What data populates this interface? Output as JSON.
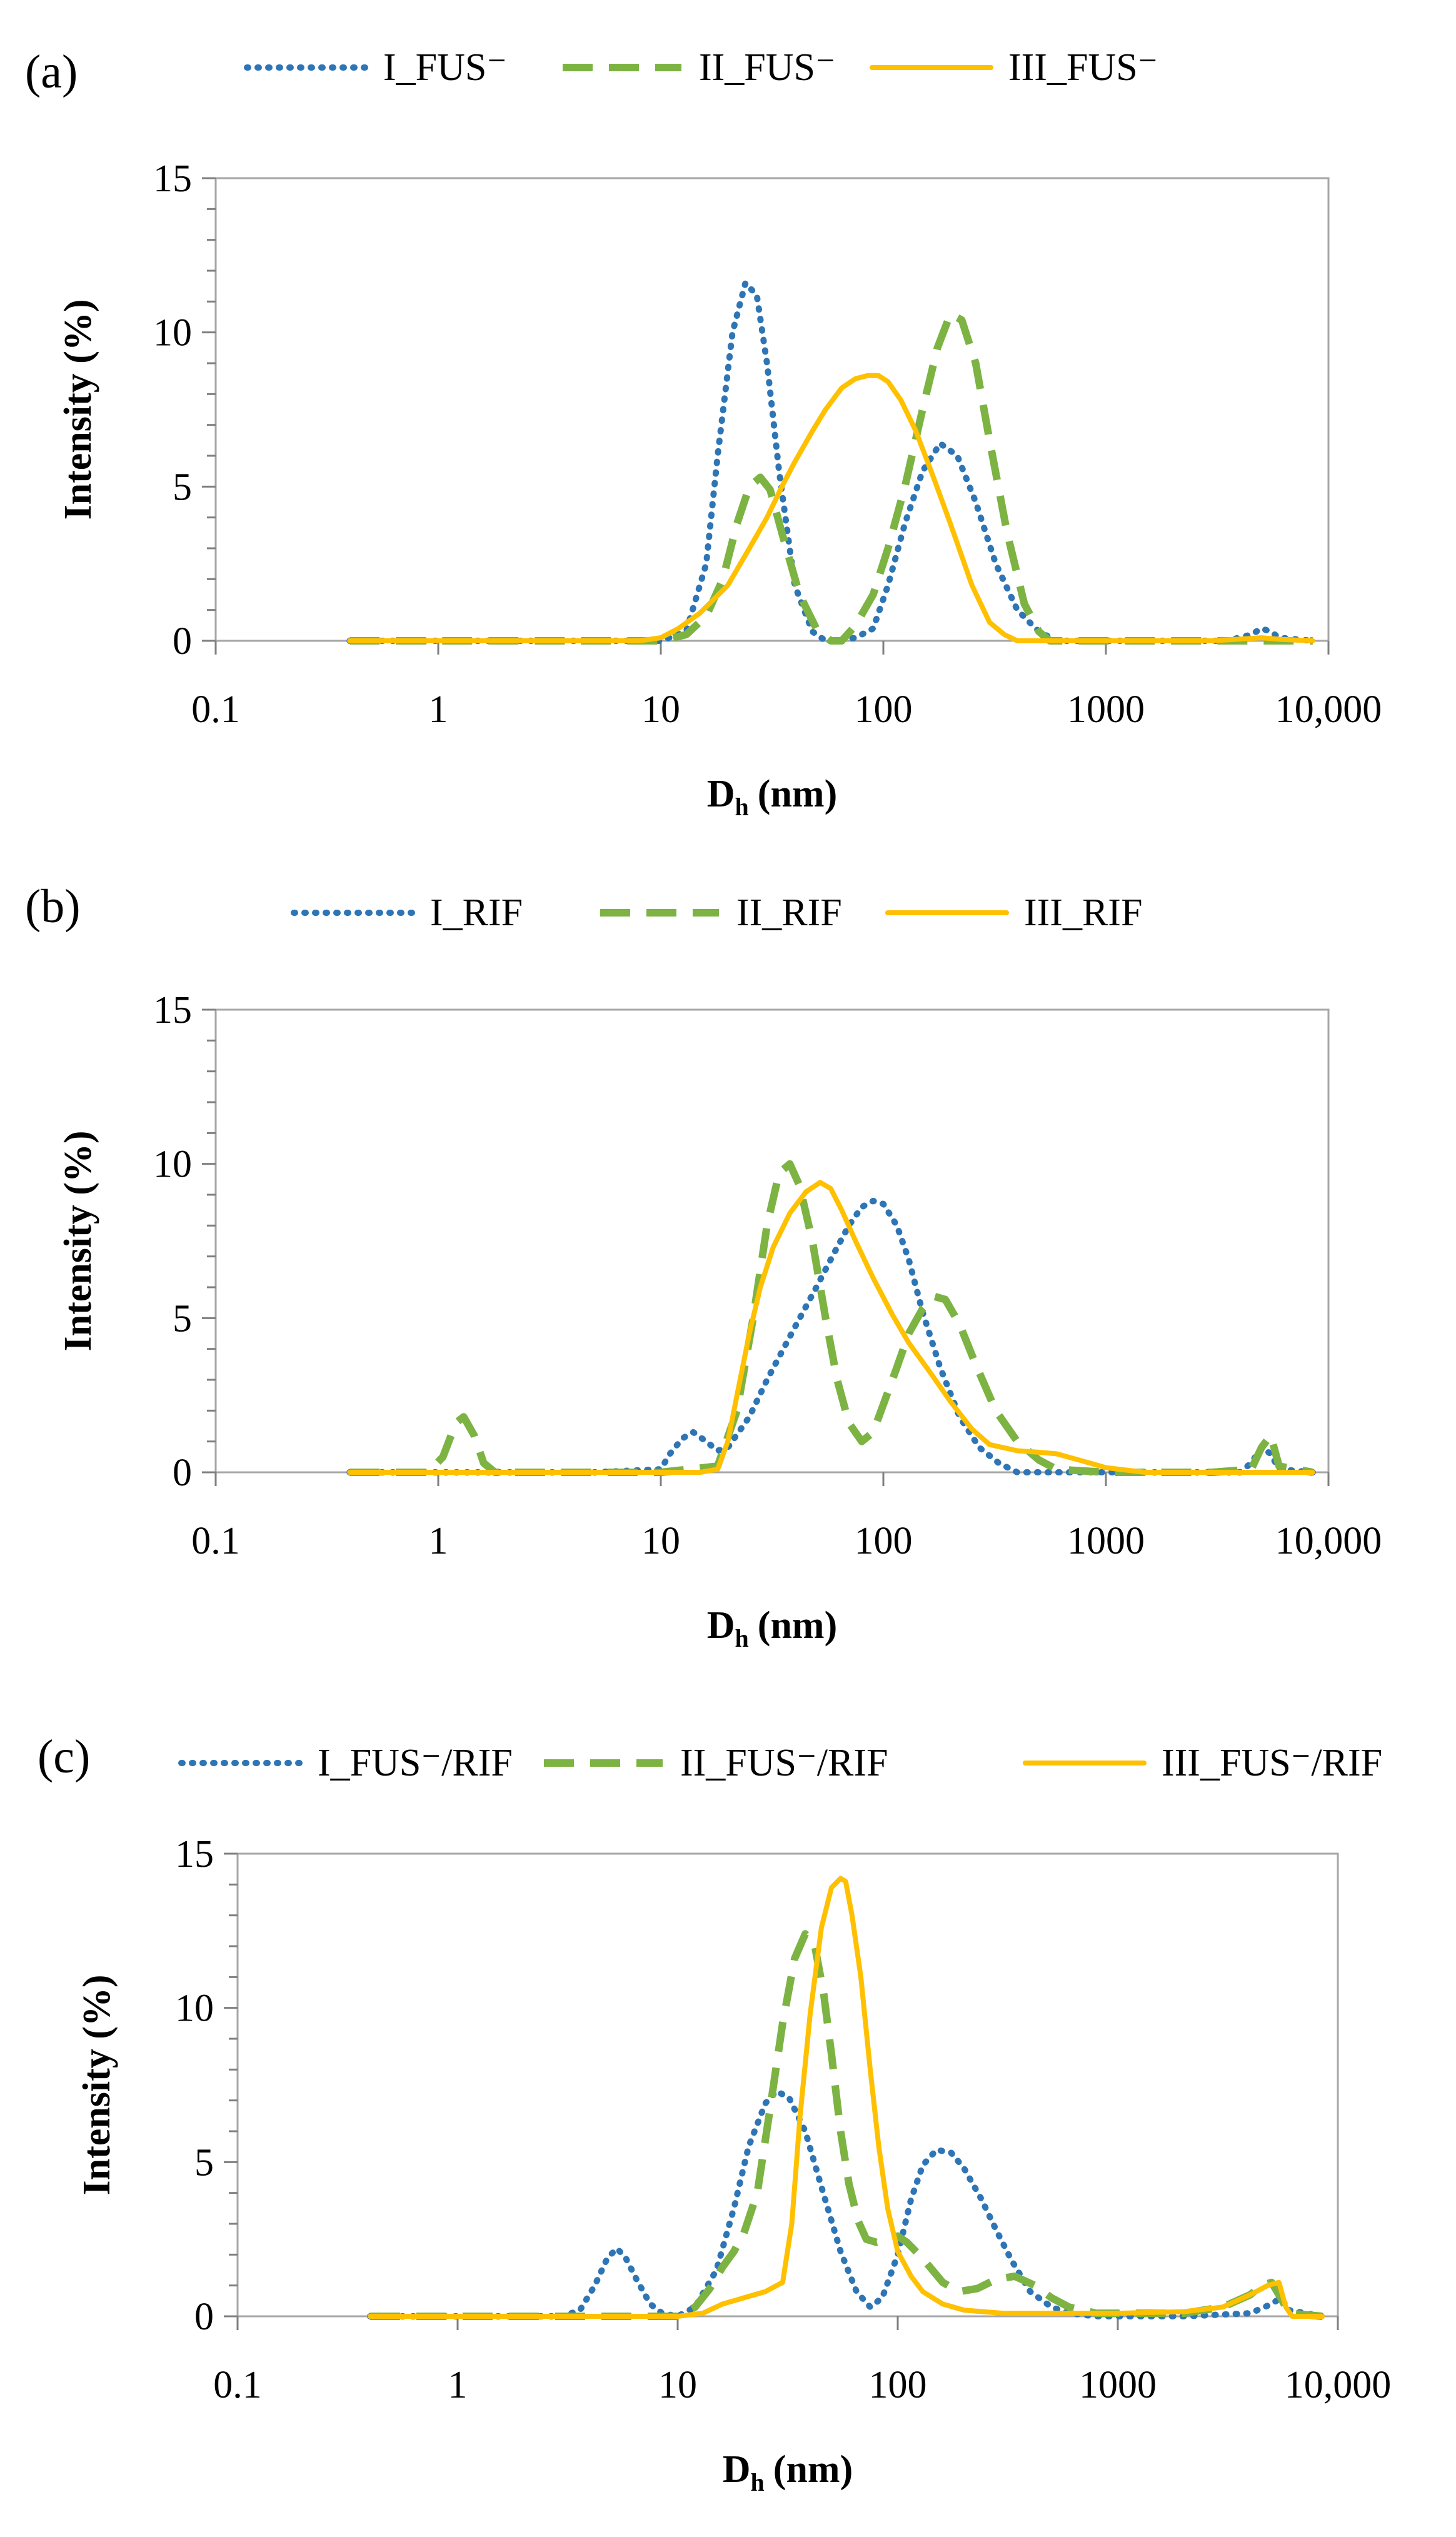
{
  "figure": {
    "series_styles": {
      "I": {
        "color": "#2E75B6",
        "dash": "dotted"
      },
      "II": {
        "color": "#7CB342",
        "dash": "dashed"
      },
      "III": {
        "color": "#FFC000",
        "dash": "solid"
      }
    },
    "x_tick_labels": [
      "0.1",
      "1",
      "10",
      "100",
      "1000",
      "10,000"
    ],
    "y_tick_labels": [
      "0",
      "5",
      "10",
      "15"
    ]
  },
  "chart_data": [
    {
      "panel": "(a)",
      "type": "line",
      "xlabel": "D",
      "xlabel_sub": "h",
      "xlabel_unit": "(nm)",
      "ylabel": "Intensity (%)",
      "xscale": "log",
      "xlim": [
        0.1,
        10000
      ],
      "ylim": [
        0,
        15
      ],
      "legend_position": "top",
      "series": [
        {
          "name": "I_FUS⁻",
          "style": "I",
          "x": [
            0.4,
            1,
            5,
            10,
            13,
            16,
            18,
            21,
            24,
            27,
            30,
            34,
            40,
            48,
            55,
            62,
            75,
            90,
            105,
            125,
            150,
            180,
            215,
            260,
            320,
            400,
            500,
            600,
            1000,
            2000,
            3500,
            4500,
            5000,
            5500,
            6000,
            8500
          ],
          "y": [
            0,
            0,
            0,
            0,
            0.3,
            2.5,
            6,
            10,
            11.6,
            11.2,
            9,
            5.5,
            1.8,
            0.3,
            0,
            0,
            0.1,
            0.4,
            1.8,
            3.8,
            5.5,
            6.4,
            6,
            4.5,
            2.5,
            1,
            0.3,
            0,
            0,
            0,
            0,
            0.2,
            0.4,
            0.3,
            0.1,
            0
          ]
        },
        {
          "name": "II_FUS⁻",
          "style": "II",
          "x": [
            0.4,
            1,
            10,
            13,
            16,
            19,
            22,
            25,
            28,
            31,
            35,
            42,
            50,
            58,
            65,
            75,
            90,
            105,
            125,
            150,
            175,
            200,
            225,
            260,
            300,
            360,
            430,
            500,
            560,
            1000,
            5000,
            8500
          ],
          "y": [
            0,
            0,
            0,
            0.2,
            0.8,
            2,
            3.8,
            5,
            5.3,
            4.9,
            3.5,
            1.5,
            0.4,
            0,
            0,
            0.5,
            1.5,
            3,
            5,
            7.5,
            9.5,
            10.6,
            10.4,
            9,
            6.5,
            3.5,
            1.2,
            0.3,
            0,
            0,
            0,
            0
          ]
        },
        {
          "name": "III_FUS⁻",
          "style": "III",
          "x": [
            0.4,
            1,
            5,
            8,
            10,
            12,
            15,
            20,
            25,
            30,
            35,
            40,
            48,
            55,
            65,
            75,
            85,
            95,
            105,
            120,
            140,
            170,
            200,
            250,
            300,
            350,
            400,
            500,
            1000,
            2000,
            3000,
            5000,
            6000,
            8500
          ],
          "y": [
            0,
            0,
            0,
            0,
            0.1,
            0.4,
            0.9,
            1.8,
            3,
            4,
            5,
            5.8,
            6.8,
            7.5,
            8.2,
            8.5,
            8.6,
            8.6,
            8.4,
            7.8,
            6.8,
            5.2,
            3.8,
            1.8,
            0.6,
            0.2,
            0,
            0,
            0,
            0,
            0,
            0.1,
            0.05,
            0
          ]
        }
      ]
    },
    {
      "panel": "(b)",
      "type": "line",
      "xlabel": "D",
      "xlabel_sub": "h",
      "xlabel_unit": "(nm)",
      "ylabel": "Intensity (%)",
      "xscale": "log",
      "xlim": [
        0.1,
        10000
      ],
      "ylim": [
        0,
        15
      ],
      "legend_position": "top",
      "series": [
        {
          "name": "I_RIF",
          "style": "I",
          "x": [
            0.4,
            1,
            5,
            10,
            11,
            12.5,
            14,
            16,
            18,
            20,
            25,
            30,
            40,
            50,
            60,
            70,
            80,
            90,
            100,
            115,
            130,
            150,
            180,
            220,
            270,
            330,
            400,
            500,
            600,
            1000,
            2000,
            4000,
            4500,
            5000,
            5500,
            6000,
            8500
          ],
          "y": [
            0,
            0,
            0,
            0.1,
            0.6,
            1.1,
            1.3,
            1.0,
            0.7,
            0.8,
            1.8,
            3,
            4.7,
            6,
            7.1,
            8,
            8.6,
            8.8,
            8.7,
            8,
            6.9,
            5.2,
            3.4,
            1.8,
            0.8,
            0.3,
            0,
            0,
            0,
            0,
            0,
            0,
            0.3,
            0.8,
            0.6,
            0.1,
            0
          ]
        },
        {
          "name": "II_RIF",
          "style": "II",
          "x": [
            0.4,
            0.9,
            1.05,
            1.2,
            1.3,
            1.45,
            1.6,
            1.8,
            10,
            18,
            22,
            26,
            30,
            34,
            38,
            42,
            48,
            55,
            62,
            70,
            80,
            90,
            100,
            115,
            130,
            150,
            170,
            190,
            220,
            260,
            320,
            400,
            500,
            600,
            1000,
            3000,
            4500,
            5000,
            5500,
            6000,
            8500
          ],
          "y": [
            0,
            0,
            0.5,
            1.6,
            1.8,
            1.2,
            0.3,
            0,
            0,
            0.2,
            2,
            5,
            8,
            9.7,
            10,
            9.3,
            7.5,
            5,
            3,
            1.6,
            1,
            1.3,
            2.2,
            3.4,
            4.5,
            5.3,
            5.7,
            5.6,
            4.8,
            3.5,
            2,
            1,
            0.4,
            0.1,
            0,
            0,
            0.1,
            0.8,
            1.2,
            0.2,
            0
          ]
        },
        {
          "name": "III_RIF",
          "style": "III",
          "x": [
            0.4,
            1,
            5,
            10,
            15,
            18,
            20,
            22,
            25,
            28,
            32,
            38,
            45,
            52,
            58,
            65,
            75,
            90,
            110,
            130,
            160,
            200,
            250,
            300,
            400,
            500,
            600,
            800,
            1000,
            1500,
            2000,
            4000,
            8500
          ],
          "y": [
            0,
            0,
            0,
            0,
            0,
            0.1,
            1,
            2.5,
            4.5,
            6,
            7.3,
            8.4,
            9.1,
            9.4,
            9.2,
            8.5,
            7.5,
            6.3,
            5.1,
            4.2,
            3.3,
            2.3,
            1.4,
            0.9,
            0.7,
            0.65,
            0.6,
            0.35,
            0.15,
            0,
            0,
            0,
            0
          ]
        }
      ]
    },
    {
      "panel": "(c)",
      "type": "line",
      "xlabel": "D",
      "xlabel_sub": "h",
      "xlabel_unit": "(nm)",
      "ylabel": "Intensity (%)",
      "xscale": "log",
      "xlim": [
        0.1,
        10000
      ],
      "ylim": [
        0,
        15
      ],
      "legend_position": "top",
      "series": [
        {
          "name": "I_FUS⁻/RIF",
          "style": "I",
          "x": [
            0.4,
            1,
            3,
            3.6,
            4.2,
            4.8,
            5.3,
            5.8,
            6.5,
            7.5,
            8.5,
            10,
            12,
            15,
            18,
            21,
            25,
            28,
            32,
            38,
            45,
            55,
            65,
            75,
            85,
            100,
            115,
            130,
            150,
            175,
            200,
            240,
            280,
            330,
            400,
            500,
            600,
            800,
            1000,
            2000,
            4000,
            5000,
            5500,
            6000,
            8500
          ],
          "y": [
            0,
            0,
            0,
            0.2,
            1,
            1.9,
            2.2,
            1.9,
            1.2,
            0.4,
            0.1,
            0,
            0.3,
            1.5,
            3.5,
            5.5,
            6.9,
            7.3,
            7.1,
            6,
            4.2,
            2.1,
            0.8,
            0.3,
            0.6,
            2,
            3.8,
            4.9,
            5.4,
            5.3,
            4.8,
            3.8,
            2.8,
            1.8,
            0.8,
            0.3,
            0.1,
            0,
            0,
            0,
            0.1,
            0.4,
            0.6,
            0.2,
            0
          ]
        },
        {
          "name": "II_FUS⁻/RIF",
          "style": "II",
          "x": [
            0.4,
            1,
            10,
            12,
            14,
            16,
            18,
            20,
            23,
            26,
            30,
            34,
            38,
            42,
            46,
            50,
            55,
            60,
            66,
            72,
            80,
            90,
            100,
            110,
            125,
            140,
            160,
            190,
            230,
            280,
            340,
            420,
            500,
            600,
            800,
            1000,
            2000,
            3000,
            4000,
            4500,
            5000,
            5500,
            6000,
            8500
          ],
          "y": [
            0,
            0,
            0,
            0.3,
            0.9,
            1.6,
            2.1,
            2.7,
            4,
            6.5,
            9.5,
            11.6,
            12.4,
            12,
            10.5,
            8.5,
            6,
            4.3,
            3.1,
            2.5,
            2.4,
            2.5,
            2.6,
            2.4,
            2,
            1.6,
            1.1,
            0.8,
            0.9,
            1.2,
            1.3,
            1,
            0.6,
            0.3,
            0.1,
            0.1,
            0.1,
            0.3,
            0.7,
            1.0,
            1.1,
            0.6,
            0.1,
            0
          ]
        },
        {
          "name": "III_FUS⁻/RIF",
          "style": "III",
          "x": [
            0.4,
            1,
            5,
            10,
            13,
            16,
            20,
            25,
            30,
            33,
            36,
            40,
            45,
            50,
            55,
            58,
            62,
            68,
            75,
            82,
            90,
            100,
            115,
            130,
            160,
            200,
            300,
            500,
            1000,
            2000,
            3000,
            4000,
            4800,
            5400,
            5800,
            6200,
            7000,
            8500
          ],
          "y": [
            0,
            0,
            0,
            0,
            0.1,
            0.4,
            0.6,
            0.8,
            1.1,
            3,
            6.5,
            9.8,
            12.6,
            13.9,
            14.2,
            14.1,
            13,
            11,
            8,
            5.5,
            3.5,
            2.1,
            1.3,
            0.8,
            0.4,
            0.2,
            0.1,
            0.1,
            0.1,
            0.15,
            0.3,
            0.7,
            1.0,
            1.1,
            0.3,
            0,
            0,
            0
          ]
        }
      ]
    }
  ]
}
